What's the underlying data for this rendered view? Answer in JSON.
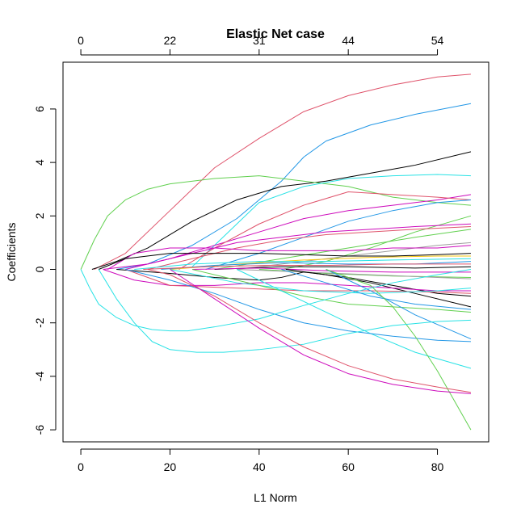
{
  "chart_data": {
    "type": "line",
    "title": "Elastic Net case",
    "xlabel": "L1 Norm",
    "ylabel": "Coefficients",
    "xlim": [
      -4,
      91.5
    ],
    "ylim": [
      -6.45,
      7.75
    ],
    "x_ticks": [
      0,
      20,
      40,
      60,
      80
    ],
    "x_tick_labels": [
      "0",
      "20",
      "40",
      "60",
      "80"
    ],
    "y_ticks": [
      -6,
      -4,
      -2,
      0,
      2,
      4,
      6
    ],
    "y_tick_labels": [
      "-6",
      "-4",
      "-2",
      "0",
      "2",
      "4",
      "6"
    ],
    "top_axis_ticks": [
      0,
      20,
      40,
      60,
      80
    ],
    "top_axis_labels": [
      "0",
      "22",
      "31",
      "44",
      "54"
    ],
    "grid": false,
    "legend": "none",
    "series": [
      {
        "color": "#DF536B",
        "x": [
          3,
          10,
          20,
          30,
          40,
          50,
          60,
          70,
          80,
          87.5
        ],
        "y": [
          0,
          0.6,
          2.2,
          3.8,
          4.9,
          5.9,
          6.5,
          6.9,
          7.2,
          7.3
        ]
      },
      {
        "color": "#2297E6",
        "x": [
          8,
          15,
          25,
          35,
          45,
          50,
          55,
          65,
          75,
          87.5
        ],
        "y": [
          0,
          0.2,
          0.9,
          1.9,
          3.3,
          4.2,
          4.8,
          5.4,
          5.8,
          6.2
        ]
      },
      {
        "color": "#000000",
        "x": [
          2.5,
          8,
          15,
          25,
          35,
          45,
          55,
          65,
          75,
          87.5
        ],
        "y": [
          0,
          0.3,
          0.8,
          1.8,
          2.6,
          3.1,
          3.3,
          3.6,
          3.9,
          4.4
        ]
      },
      {
        "color": "#61D04F",
        "x": [
          0,
          3,
          6,
          10,
          15,
          20,
          30,
          40,
          50,
          60,
          70,
          80,
          87.5
        ],
        "y": [
          0,
          1.1,
          2.0,
          2.6,
          3.0,
          3.2,
          3.4,
          3.5,
          3.3,
          3.1,
          2.7,
          2.5,
          2.4
        ]
      },
      {
        "color": "#28E2E5",
        "x": [
          25,
          30,
          35,
          40,
          50,
          60,
          70,
          80,
          87.5
        ],
        "y": [
          0.1,
          0.9,
          1.7,
          2.5,
          3.1,
          3.4,
          3.5,
          3.55,
          3.5
        ]
      },
      {
        "color": "#CD0BBC",
        "x": [
          10,
          20,
          30,
          40,
          50,
          60,
          70,
          80,
          87.5
        ],
        "y": [
          0,
          0.4,
          0.9,
          1.4,
          1.9,
          2.2,
          2.4,
          2.6,
          2.8
        ]
      },
      {
        "color": "#DF536B",
        "x": [
          22,
          30,
          40,
          50,
          60,
          70,
          80,
          87.5
        ],
        "y": [
          0,
          0.8,
          1.7,
          2.4,
          2.9,
          2.8,
          2.7,
          2.6
        ]
      },
      {
        "color": "#2297E6",
        "x": [
          28,
          40,
          50,
          60,
          70,
          80,
          87.5
        ],
        "y": [
          0,
          0.6,
          1.2,
          1.8,
          2.2,
          2.5,
          2.6
        ]
      },
      {
        "color": "#61D04F",
        "x": [
          45,
          55,
          65,
          75,
          87.5
        ],
        "y": [
          0,
          0.3,
          0.8,
          1.4,
          2.0
        ]
      },
      {
        "color": "#CD0BBC",
        "x": [
          5,
          15,
          25,
          35,
          45,
          55,
          65,
          75,
          87.5
        ],
        "y": [
          0,
          0.2,
          0.6,
          1.0,
          1.2,
          1.4,
          1.5,
          1.6,
          1.7
        ]
      },
      {
        "color": "#DF536B",
        "x": [
          15,
          25,
          35,
          45,
          55,
          65,
          75,
          87.5
        ],
        "y": [
          0,
          0.4,
          0.8,
          1.1,
          1.3,
          1.4,
          1.5,
          1.6
        ]
      },
      {
        "color": "#61D04F",
        "x": [
          30,
          45,
          60,
          75,
          87.5
        ],
        "y": [
          0,
          0.4,
          0.8,
          1.2,
          1.5
        ]
      },
      {
        "color": "#9E9E9E",
        "x": [
          35,
          50,
          65,
          80,
          87.5
        ],
        "y": [
          0,
          0.3,
          0.6,
          0.9,
          1.0
        ]
      },
      {
        "color": "#CD0BBC",
        "x": [
          6,
          12,
          20,
          30,
          40,
          50,
          60,
          70,
          80,
          87.5
        ],
        "y": [
          0,
          0.6,
          0.8,
          0.8,
          0.7,
          0.7,
          0.7,
          0.8,
          0.8,
          0.9
        ]
      },
      {
        "color": "#000000",
        "x": [
          4,
          10,
          20,
          30,
          40,
          50,
          60,
          70,
          80,
          87.5
        ],
        "y": [
          0,
          0.4,
          0.6,
          0.6,
          0.6,
          0.55,
          0.5,
          0.5,
          0.55,
          0.6
        ]
      },
      {
        "color": "#F5C710",
        "x": [
          20,
          35,
          50,
          65,
          80,
          87.5
        ],
        "y": [
          0,
          0.2,
          0.35,
          0.45,
          0.5,
          0.5
        ]
      },
      {
        "color": "#28E2E5",
        "x": [
          12,
          25,
          40,
          55,
          70,
          87.5
        ],
        "y": [
          0,
          0.2,
          0.3,
          0.3,
          0.35,
          0.4
        ]
      },
      {
        "color": "#2297E6",
        "x": [
          18,
          30,
          45,
          60,
          75,
          87.5
        ],
        "y": [
          0,
          0.15,
          0.25,
          0.2,
          0.2,
          0.3
        ]
      },
      {
        "color": "#DF536B",
        "x": [
          14,
          28,
          42,
          56,
          70,
          87.5
        ],
        "y": [
          0,
          0.1,
          0.15,
          0.15,
          0.2,
          0.2
        ]
      },
      {
        "color": "#000000",
        "x": [
          30,
          45,
          60,
          75,
          87.5
        ],
        "y": [
          0,
          0.1,
          0.1,
          0.05,
          0.1
        ]
      },
      {
        "color": "#CD0BBC",
        "x": [
          25,
          40,
          55,
          70,
          87.5
        ],
        "y": [
          0,
          0.05,
          -0.05,
          -0.1,
          -0.1
        ]
      },
      {
        "color": "#61D04F",
        "x": [
          40,
          55,
          70,
          87.5
        ],
        "y": [
          0,
          -0.15,
          -0.25,
          -0.3
        ]
      },
      {
        "color": "#9E9E9E",
        "x": [
          35,
          50,
          65,
          80,
          87.5
        ],
        "y": [
          0,
          -0.1,
          -0.2,
          -0.3,
          -0.35
        ]
      },
      {
        "color": "#000000",
        "x": [
          8,
          20,
          30,
          40,
          45,
          50,
          60,
          70,
          80,
          87.5
        ],
        "y": [
          0,
          -0.15,
          -0.3,
          -0.4,
          -0.3,
          -0.1,
          -0.3,
          -0.6,
          -0.9,
          -1.0
        ]
      },
      {
        "color": "#000000",
        "x": [
          46,
          55,
          65,
          75,
          87.5
        ],
        "y": [
          0,
          -0.2,
          -0.5,
          -0.9,
          -1.4
        ]
      },
      {
        "color": "#CD0BBC",
        "x": [
          5,
          12,
          20,
          30,
          40,
          50,
          60,
          70,
          80,
          87.5
        ],
        "y": [
          0,
          -0.4,
          -0.6,
          -0.6,
          -0.5,
          -0.5,
          -0.6,
          -0.7,
          -0.8,
          -0.8
        ]
      },
      {
        "color": "#DF536B",
        "x": [
          10,
          20,
          35,
          50,
          65,
          80,
          87.5
        ],
        "y": [
          0,
          -0.6,
          -0.7,
          -0.8,
          -0.8,
          -0.85,
          -0.9
        ]
      },
      {
        "color": "#28E2E5",
        "x": [
          20,
          35,
          50,
          65,
          80,
          87.5
        ],
        "y": [
          0,
          -0.5,
          -0.8,
          -0.9,
          -0.8,
          -0.7
        ]
      },
      {
        "color": "#61D04F",
        "x": [
          25,
          40,
          50,
          60,
          70,
          80,
          87.5
        ],
        "y": [
          0,
          -0.6,
          -1.0,
          -1.3,
          -1.4,
          -1.5,
          -1.6
        ]
      },
      {
        "color": "#2297E6",
        "x": [
          45,
          55,
          65,
          75,
          87.5
        ],
        "y": [
          0,
          -0.5,
          -1.0,
          -1.3,
          -1.5
        ]
      },
      {
        "color": "#28E2E5",
        "x": [
          35,
          45,
          55,
          65,
          75,
          87.5
        ],
        "y": [
          0,
          -0.8,
          -1.6,
          -2.4,
          -3.1,
          -3.7
        ]
      },
      {
        "color": "#2297E6",
        "x": [
          10,
          20,
          30,
          40,
          50,
          60,
          70,
          80,
          87.5
        ],
        "y": [
          0,
          -0.4,
          -0.9,
          -1.5,
          -2.0,
          -2.3,
          -2.5,
          -2.65,
          -2.7
        ]
      },
      {
        "color": "#2297E6",
        "x": [
          55,
          65,
          75,
          87.5
        ],
        "y": [
          0,
          -0.8,
          -1.7,
          -2.6
        ]
      },
      {
        "color": "#61D04F",
        "x": [
          55,
          65,
          70,
          75,
          80,
          87.5
        ],
        "y": [
          0,
          -0.6,
          -1.4,
          -2.5,
          -3.8,
          -6.0
        ]
      },
      {
        "color": "#28E2E5",
        "x": [
          0,
          2,
          4,
          8,
          12,
          16,
          20,
          24,
          30,
          40,
          50,
          60,
          70,
          80,
          87.5
        ],
        "y": [
          0,
          -0.7,
          -1.3,
          -1.8,
          -2.1,
          -2.25,
          -2.3,
          -2.3,
          -2.15,
          -1.85,
          -1.35,
          -0.9,
          -0.5,
          -0.2,
          0
        ]
      },
      {
        "color": "#28E2E5",
        "x": [
          4,
          8,
          12,
          16,
          20,
          26,
          32,
          40,
          50,
          60,
          70,
          80,
          87.5
        ],
        "y": [
          0,
          -1.1,
          -2.0,
          -2.7,
          -3.0,
          -3.1,
          -3.1,
          -3.0,
          -2.8,
          -2.4,
          -2.1,
          -1.95,
          -1.9
        ]
      },
      {
        "color": "#DF536B",
        "x": [
          15,
          20,
          30,
          40,
          50,
          60,
          70,
          80,
          87.5
        ],
        "y": [
          0,
          -0.2,
          -1.0,
          -2.0,
          -2.9,
          -3.6,
          -4.1,
          -4.4,
          -4.6
        ]
      },
      {
        "color": "#CD0BBC",
        "x": [
          20,
          30,
          40,
          50,
          60,
          70,
          80,
          87.5
        ],
        "y": [
          0,
          -1.1,
          -2.2,
          -3.2,
          -3.9,
          -4.3,
          -4.55,
          -4.65
        ]
      }
    ]
  }
}
